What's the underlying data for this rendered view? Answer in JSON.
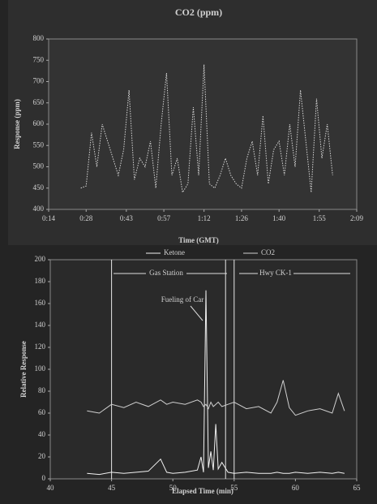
{
  "chart_data": [
    {
      "type": "line",
      "title": "CO2 (ppm)",
      "ylabel": "Response (ppm)",
      "xlabel": "Time (GMT)",
      "x": [
        26,
        28,
        30,
        32,
        34,
        36,
        38,
        40,
        42,
        44,
        46,
        48,
        50,
        52,
        54,
        56,
        58,
        60,
        62,
        64,
        66,
        68,
        70,
        72,
        74,
        76,
        78,
        80,
        82,
        84,
        86,
        88,
        90,
        92,
        94,
        96,
        98,
        100,
        102,
        104,
        106,
        108,
        110,
        112,
        114,
        116,
        118,
        120
      ],
      "values": [
        450,
        455,
        580,
        500,
        600,
        560,
        520,
        480,
        540,
        680,
        470,
        520,
        500,
        560,
        450,
        600,
        720,
        480,
        520,
        440,
        460,
        640,
        480,
        740,
        460,
        450,
        480,
        520,
        480,
        460,
        450,
        520,
        560,
        480,
        620,
        460,
        540,
        560,
        480,
        600,
        500,
        680,
        560,
        440,
        660,
        520,
        600,
        480
      ],
      "color": "#d8d8d8",
      "xlim": [
        14,
        129
      ],
      "xticks": [
        {
          "value": 14,
          "label": "0:14"
        },
        {
          "value": 28,
          "label": "0:28"
        },
        {
          "value": 43,
          "label": "0:43"
        },
        {
          "value": 57,
          "label": "0:57"
        },
        {
          "value": 72,
          "label": "1:12"
        },
        {
          "value": 86,
          "label": "1:26"
        },
        {
          "value": 100,
          "label": "1:40"
        },
        {
          "value": 115,
          "label": "1:55"
        },
        {
          "value": 129,
          "label": "2:09"
        }
      ],
      "ylim": [
        400,
        800
      ],
      "yticks": [
        400,
        450,
        500,
        550,
        600,
        650,
        700,
        750,
        800
      ],
      "grid": false
    },
    {
      "type": "line",
      "ylabel": "Relative Response",
      "xlabel": "Elapsed Time (min)",
      "x": [
        43,
        44,
        45,
        46,
        47,
        48,
        49,
        49.5,
        50,
        51,
        52,
        52.3,
        52.5,
        52.7,
        52.9,
        53.1,
        53.3,
        53.5,
        53.7,
        54,
        54.5,
        55,
        56,
        57,
        58,
        58.5,
        59,
        59.5,
        60,
        61,
        62,
        63,
        63.5,
        64
      ],
      "series": [
        {
          "name": "Ketone",
          "color": "#f2f2f2",
          "values": [
            5,
            4,
            6,
            5,
            6,
            7,
            18,
            6,
            5,
            6,
            8,
            20,
            6,
            172,
            10,
            25,
            8,
            50,
            9,
            15,
            6,
            5,
            6,
            5,
            5,
            6,
            5,
            5,
            6,
            5,
            6,
            5,
            6,
            5
          ]
        },
        {
          "name": "CO2",
          "color": "#cfcfcf",
          "values": [
            62,
            60,
            68,
            65,
            70,
            66,
            72,
            68,
            70,
            68,
            72,
            70,
            66,
            68,
            64,
            70,
            66,
            68,
            70,
            66,
            68,
            70,
            64,
            66,
            60,
            70,
            90,
            65,
            58,
            62,
            64,
            60,
            78,
            62
          ]
        }
      ],
      "xlim": [
        40,
        65
      ],
      "xticks": [
        40,
        45,
        50,
        55,
        60,
        65
      ],
      "ylim": [
        0,
        200
      ],
      "yticks": [
        0,
        20,
        40,
        60,
        80,
        100,
        120,
        140,
        160,
        180,
        200
      ],
      "vlines": [
        45,
        54.3,
        55
      ],
      "annotations": [
        "Gas Station",
        "Hwy CK-1",
        "Fueling of Car"
      ],
      "grid": false
    }
  ]
}
